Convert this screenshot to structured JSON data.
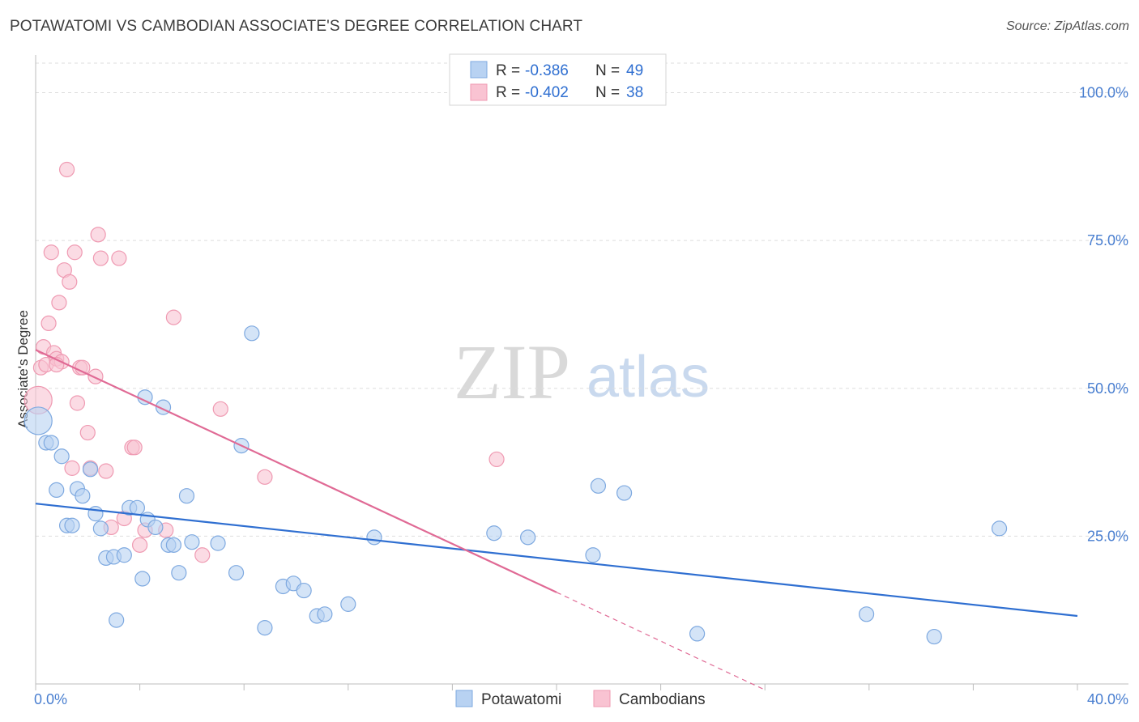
{
  "header": {
    "title": "POTAWATOMI VS CAMBODIAN ASSOCIATE'S DEGREE CORRELATION CHART",
    "source": "Source: ZipAtlas.com"
  },
  "watermark": {
    "zip": "ZIP",
    "atlas": "atlas"
  },
  "legend_top": {
    "rows": [
      {
        "r_label": "R =",
        "r_value": "-0.386",
        "n_label": "N =",
        "n_value": "49"
      },
      {
        "r_label": "R =",
        "r_value": "-0.402",
        "n_label": "N =",
        "n_value": "38"
      }
    ]
  },
  "legend_bottom": {
    "items": [
      "Potawatomi",
      "Cambodians"
    ]
  },
  "colors": {
    "blue_fill": "#b8d2f2",
    "blue_stroke": "#7ea9e0",
    "blue_line": "#2f6fd1",
    "pink_fill": "#f9c3d2",
    "pink_stroke": "#ef9ab2",
    "pink_line": "#e06a95",
    "axis_text": "#4a7fd0",
    "grid": "#dddddd"
  },
  "chart_data": {
    "type": "scatter",
    "title": "POTAWATOMI VS CAMBODIAN ASSOCIATE'S DEGREE CORRELATION CHART",
    "xlabel": "",
    "ylabel": "Associate's Degree",
    "xlim": [
      0,
      40
    ],
    "ylim": [
      0,
      105
    ],
    "x_tick_labels": [
      {
        "value": 0,
        "label": "0.0%"
      },
      {
        "value": 40,
        "label": "40.0%"
      }
    ],
    "y_tick_labels": [
      {
        "value": 25,
        "label": "25.0%"
      },
      {
        "value": 50,
        "label": "50.0%"
      },
      {
        "value": 75,
        "label": "75.0%"
      },
      {
        "value": 100,
        "label": "100.0%"
      }
    ],
    "grid": true,
    "series": [
      {
        "name": "Potawatomi",
        "color": "#b8d2f2",
        "R": -0.386,
        "N": 49,
        "trend": {
          "x0": 0,
          "y0": 30.5,
          "x1": 40,
          "y1": 11.5
        },
        "points": [
          [
            0.1,
            44.5
          ],
          [
            0.4,
            40.8
          ],
          [
            0.6,
            40.8
          ],
          [
            0.8,
            32.8
          ],
          [
            1.0,
            38.5
          ],
          [
            1.2,
            26.8
          ],
          [
            1.4,
            26.8
          ],
          [
            1.6,
            33.0
          ],
          [
            1.8,
            31.8
          ],
          [
            2.1,
            36.3
          ],
          [
            2.3,
            28.8
          ],
          [
            2.5,
            26.3
          ],
          [
            2.7,
            21.3
          ],
          [
            3.0,
            21.5
          ],
          [
            3.1,
            10.8
          ],
          [
            3.4,
            21.8
          ],
          [
            3.6,
            29.8
          ],
          [
            3.9,
            29.8
          ],
          [
            4.1,
            17.8
          ],
          [
            4.3,
            27.8
          ],
          [
            4.2,
            48.5
          ],
          [
            4.6,
            26.5
          ],
          [
            4.9,
            46.8
          ],
          [
            5.1,
            23.5
          ],
          [
            5.3,
            23.5
          ],
          [
            5.5,
            18.8
          ],
          [
            5.8,
            31.8
          ],
          [
            6.0,
            24.0
          ],
          [
            7.0,
            23.8
          ],
          [
            7.7,
            18.8
          ],
          [
            8.3,
            59.3
          ],
          [
            7.9,
            40.3
          ],
          [
            8.8,
            9.5
          ],
          [
            9.5,
            16.5
          ],
          [
            9.9,
            17.0
          ],
          [
            10.3,
            15.8
          ],
          [
            10.8,
            11.5
          ],
          [
            11.1,
            11.8
          ],
          [
            12.0,
            13.5
          ],
          [
            13.0,
            24.8
          ],
          [
            17.6,
            25.5
          ],
          [
            18.9,
            24.8
          ],
          [
            21.4,
            21.8
          ],
          [
            21.6,
            33.5
          ],
          [
            22.6,
            32.3
          ],
          [
            25.4,
            8.5
          ],
          [
            31.9,
            11.8
          ],
          [
            34.5,
            8.0
          ],
          [
            37.0,
            26.3
          ]
        ]
      },
      {
        "name": "Cambodians",
        "color": "#f9c3d2",
        "R": -0.402,
        "N": 38,
        "trend": {
          "x0": 0,
          "y0": 56.5,
          "x1": 20.0,
          "y1": 15.5,
          "dash_x1": 28.0,
          "dash_y1": -1.0
        },
        "points": [
          [
            0.1,
            48.0
          ],
          [
            0.2,
            53.5
          ],
          [
            0.3,
            57.0
          ],
          [
            0.4,
            54.0
          ],
          [
            0.5,
            61.0
          ],
          [
            0.6,
            73.0
          ],
          [
            0.7,
            56.0
          ],
          [
            0.8,
            55.0
          ],
          [
            0.9,
            64.5
          ],
          [
            1.0,
            54.5
          ],
          [
            1.1,
            70.0
          ],
          [
            1.2,
            87.0
          ],
          [
            1.3,
            68.0
          ],
          [
            1.4,
            36.5
          ],
          [
            1.5,
            73.0
          ],
          [
            1.6,
            47.5
          ],
          [
            1.7,
            53.5
          ],
          [
            1.8,
            53.5
          ],
          [
            2.0,
            42.5
          ],
          [
            2.1,
            36.5
          ],
          [
            2.3,
            52.0
          ],
          [
            2.4,
            76.0
          ],
          [
            2.5,
            72.0
          ],
          [
            2.7,
            36.0
          ],
          [
            2.9,
            26.5
          ],
          [
            3.2,
            72.0
          ],
          [
            3.4,
            28.0
          ],
          [
            3.7,
            40.0
          ],
          [
            3.8,
            40.0
          ],
          [
            4.0,
            23.5
          ],
          [
            4.2,
            26.0
          ],
          [
            5.0,
            26.0
          ],
          [
            5.3,
            62.0
          ],
          [
            6.4,
            21.8
          ],
          [
            7.1,
            46.5
          ],
          [
            8.8,
            35.0
          ],
          [
            17.7,
            38.0
          ],
          [
            0.8,
            54.0
          ]
        ]
      }
    ]
  }
}
